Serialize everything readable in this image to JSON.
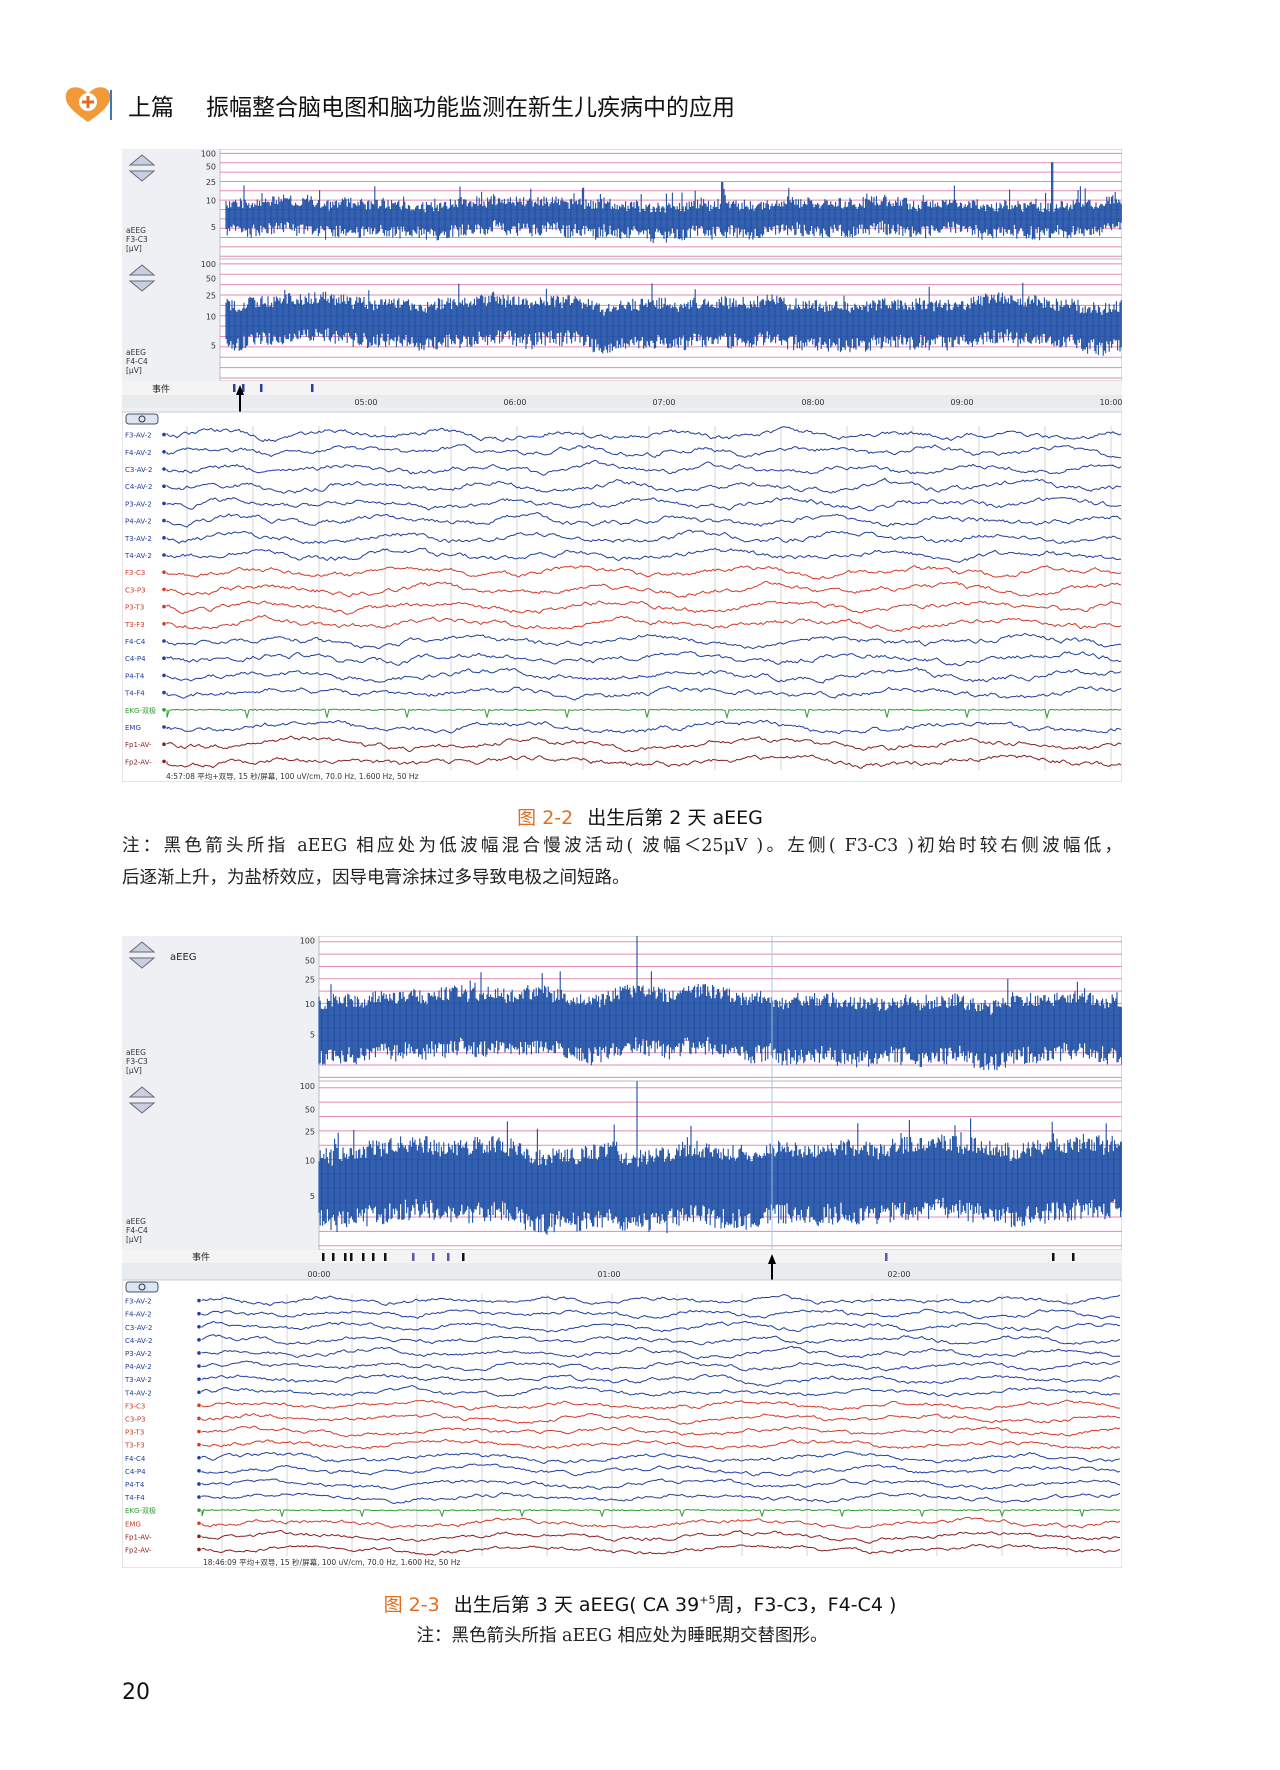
{
  "header": {
    "section": "上篇",
    "title": "振幅整合脑电图和脑功能监测在新生儿疾病中的应用"
  },
  "figures": [
    {
      "panels": [
        {
          "label_lines": [
            "aEEG",
            "F3-C3",
            "[µV]"
          ],
          "ticks": [
            "100",
            "50",
            "25",
            "10",
            "5"
          ]
        },
        {
          "label_lines": [
            "aEEG",
            "F4-C4",
            "[µV]"
          ],
          "ticks": [
            "100",
            "50",
            "25",
            "10",
            "5"
          ]
        }
      ],
      "event_label": "事件",
      "times": [
        "05:00",
        "06:00",
        "07:00",
        "08:00",
        "09:00",
        "10:00"
      ],
      "channels": [
        {
          "name": "F3-AV-2",
          "color": "#1f3fa0"
        },
        {
          "name": "F4-AV-2",
          "color": "#1f3fa0"
        },
        {
          "name": "C3-AV-2",
          "color": "#1f3fa0"
        },
        {
          "name": "C4-AV-2",
          "color": "#1f3fa0"
        },
        {
          "name": "P3-AV-2",
          "color": "#1f3fa0"
        },
        {
          "name": "P4-AV-2",
          "color": "#1f3fa0"
        },
        {
          "name": "T3-AV-2",
          "color": "#1f3fa0"
        },
        {
          "name": "T4-AV-2",
          "color": "#1f3fa0"
        },
        {
          "name": "F3-C3",
          "color": "#d23a2a"
        },
        {
          "name": "C3-P3",
          "color": "#d23a2a"
        },
        {
          "name": "P3-T3",
          "color": "#d23a2a"
        },
        {
          "name": "T3-F3",
          "color": "#d23a2a"
        },
        {
          "name": "F4-C4",
          "color": "#1f3fa0"
        },
        {
          "name": "C4-P4",
          "color": "#1f3fa0"
        },
        {
          "name": "P4-T4",
          "color": "#1f3fa0"
        },
        {
          "name": "T4-F4",
          "color": "#1f3fa0"
        },
        {
          "name": "EKG-双极",
          "color": "#2f9a2f"
        },
        {
          "name": "EMG",
          "color": "#1f3fa0"
        },
        {
          "name": "Fp1-AV-",
          "color": "#8a1f1f"
        },
        {
          "name": "Fp2-AV-",
          "color": "#8a1f1f"
        }
      ],
      "status": "4:57:08 平均+双导, 15 秒/屏幕, 100 uV/cm, 70.0 Hz, 1.600 Hz, 50 Hz",
      "caption_number": "图 2-2",
      "caption_parts": [
        "出生后第 2 天 aEEG"
      ],
      "note": [
        "注：黑色箭头所指 aEEG 相应处为低波幅混合慢波活动( 波幅＜25μV )。左侧( F3-C3 )初始时较右侧波幅低，",
        "后逐渐上升，为盐桥效应，因导电膏涂抹过多导致电极之间短路。"
      ]
    },
    {
      "button": "aEEG",
      "panels": [
        {
          "label_lines": [
            "aEEG",
            "F3-C3",
            "[µV]"
          ],
          "ticks": [
            "100",
            "50",
            "25",
            "10",
            "5"
          ]
        },
        {
          "label_lines": [
            "aEEG",
            "F4-C4",
            "[µV]"
          ],
          "ticks": [
            "100",
            "50",
            "25",
            "10",
            "5"
          ]
        }
      ],
      "event_label": "事件",
      "times": [
        "00:00",
        "01:00",
        "02:00"
      ],
      "channels": [
        {
          "name": "F3-AV-2",
          "color": "#1f3fa0"
        },
        {
          "name": "F4-AV-2",
          "color": "#1f3fa0"
        },
        {
          "name": "C3-AV-2",
          "color": "#1f3fa0"
        },
        {
          "name": "C4-AV-2",
          "color": "#1f3fa0"
        },
        {
          "name": "P3-AV-2",
          "color": "#1f3fa0"
        },
        {
          "name": "P4-AV-2",
          "color": "#1f3fa0"
        },
        {
          "name": "T3-AV-2",
          "color": "#1f3fa0"
        },
        {
          "name": "T4-AV-2",
          "color": "#1f3fa0"
        },
        {
          "name": "F3-C3",
          "color": "#d23a2a"
        },
        {
          "name": "C3-P3",
          "color": "#d23a2a"
        },
        {
          "name": "P3-T3",
          "color": "#d23a2a"
        },
        {
          "name": "T3-F3",
          "color": "#d23a2a"
        },
        {
          "name": "F4-C4",
          "color": "#1f3fa0"
        },
        {
          "name": "C4-P4",
          "color": "#1f3fa0"
        },
        {
          "name": "P4-T4",
          "color": "#1f3fa0"
        },
        {
          "name": "T4-F4",
          "color": "#1f3fa0"
        },
        {
          "name": "EKG-双极",
          "color": "#2f9a2f"
        },
        {
          "name": "EMG",
          "color": "#d23a2a"
        },
        {
          "name": "Fp1-AV-",
          "color": "#8a1f1f"
        },
        {
          "name": "Fp2-AV-",
          "color": "#8a1f1f"
        }
      ],
      "status": "18:46:09 平均+双导, 15 秒/屏幕, 100 uV/cm, 70.0 Hz, 1.600 Hz, 50 Hz",
      "caption_number": "图 2-3",
      "caption_parts": [
        "出生后第 3 天 aEEG( CA 39",
        "+5",
        "周，F3-C3，F4-C4 )"
      ],
      "note": [
        "注：黑色箭头所指 aEEG 相应处为睡眠期交替图形。"
      ]
    }
  ],
  "page_number": "20"
}
